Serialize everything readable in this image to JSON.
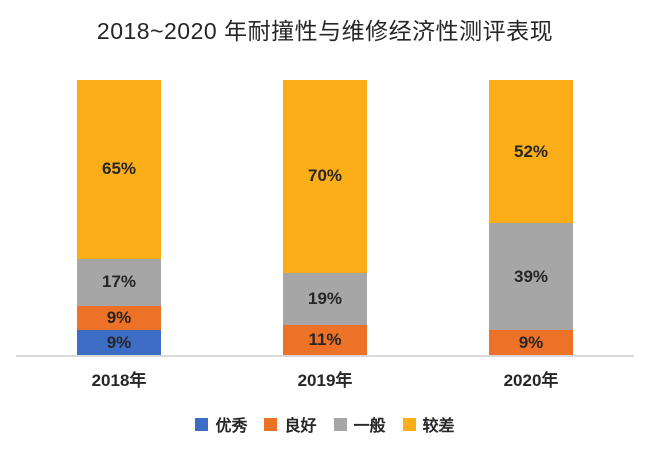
{
  "title": "2018~2020 年耐撞性与维修经济性测评表现",
  "chart_data": {
    "type": "bar",
    "stacked": true,
    "title": "2018~2020 年耐撞性与维修经济性测评表现",
    "categories": [
      "2018年",
      "2019年",
      "2020年"
    ],
    "series": [
      {
        "name": "优秀",
        "key": "excellent",
        "color": "#3E6DC5",
        "values": [
          9,
          0,
          0
        ]
      },
      {
        "name": "良好",
        "key": "good",
        "color": "#ED7228",
        "values": [
          9,
          11,
          9
        ]
      },
      {
        "name": "一般",
        "key": "average",
        "color": "#A6A6A6",
        "values": [
          17,
          19,
          39
        ]
      },
      {
        "name": "较差",
        "key": "poor",
        "color": "#FBAE17",
        "values": [
          65,
          70,
          52
        ]
      }
    ],
    "value_suffix": "%",
    "ylim": [
      0,
      100
    ],
    "grid": false,
    "y_axis_visible": false,
    "baseline_color": "#d9d9d9",
    "label_color": "#262626",
    "legend_position": "bottom"
  }
}
